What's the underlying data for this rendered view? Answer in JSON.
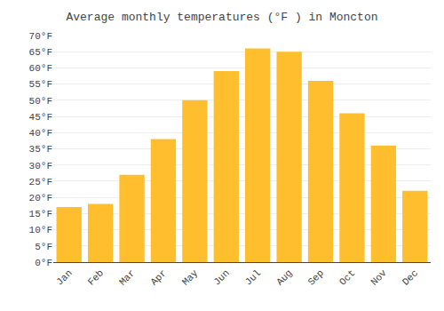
{
  "chart_data": {
    "type": "bar",
    "title": "Average monthly temperatures (°F ) in Moncton",
    "categories": [
      "Jan",
      "Feb",
      "Mar",
      "Apr",
      "May",
      "Jun",
      "Jul",
      "Aug",
      "Sep",
      "Oct",
      "Nov",
      "Dec"
    ],
    "values": [
      17,
      18,
      27,
      38,
      50,
      59,
      66,
      65,
      56,
      46,
      36,
      22
    ],
    "color": "#FFBE2D",
    "ylim": [
      0,
      70
    ],
    "yticks": [
      {
        "value": 0,
        "label": "0°F"
      },
      {
        "value": 5,
        "label": "5°F"
      },
      {
        "value": 10,
        "label": "10°F"
      },
      {
        "value": 15,
        "label": "15°F"
      },
      {
        "value": 20,
        "label": "20°F"
      },
      {
        "value": 25,
        "label": "25°F"
      },
      {
        "value": 30,
        "label": "30°F"
      },
      {
        "value": 35,
        "label": "35°F"
      },
      {
        "value": 40,
        "label": "40°F"
      },
      {
        "value": 45,
        "label": "45°F"
      },
      {
        "value": 50,
        "label": "50°F"
      },
      {
        "value": 55,
        "label": "55°F"
      },
      {
        "value": 60,
        "label": "60°F"
      },
      {
        "value": 65,
        "label": "65°F"
      },
      {
        "value": 70,
        "label": "70°F"
      }
    ],
    "grid": true
  }
}
